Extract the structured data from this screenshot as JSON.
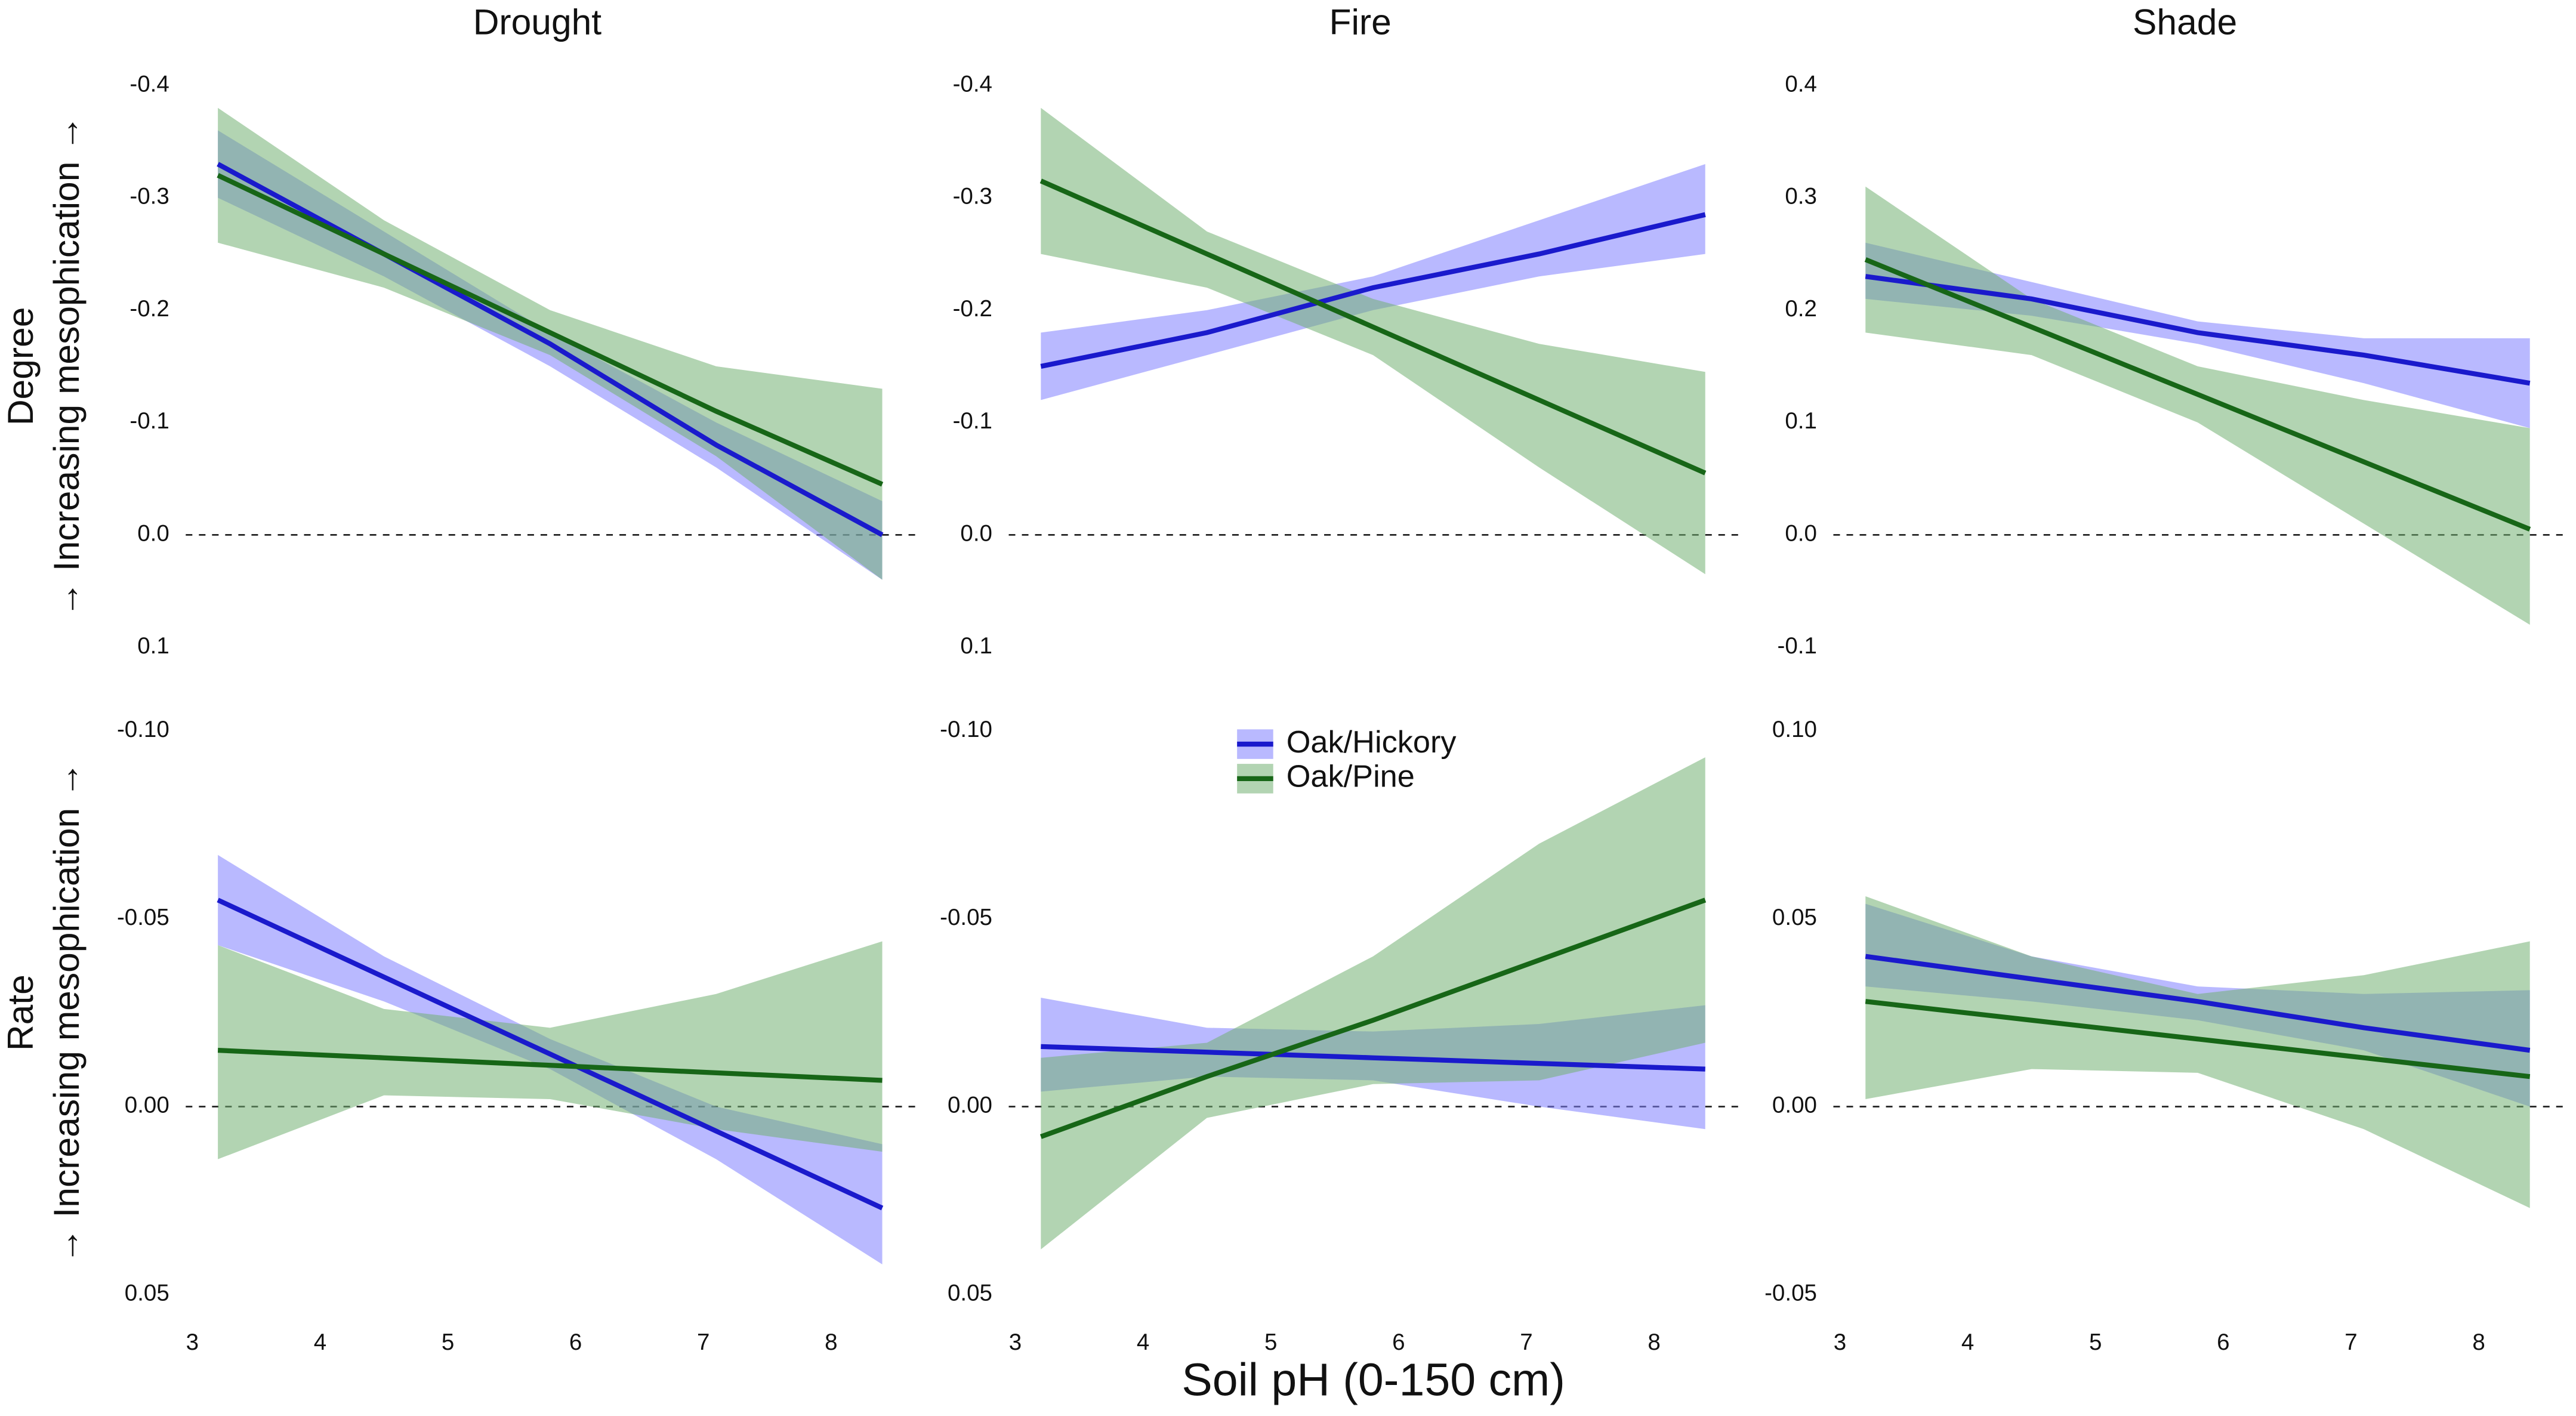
{
  "xlabel": "Soil pH (0-150 cm)",
  "chart_data": [
    {
      "type": "line",
      "title": "Drought",
      "ylabel": "Degree",
      "ylabel_sub": "→ Increasing mesophication →",
      "x": [
        3.2,
        4.5,
        5.8,
        7.1,
        8.4
      ],
      "xlim": [
        3,
        8.4
      ],
      "ylim": [
        0.1,
        -0.4
      ],
      "yticks": [
        -0.4,
        -0.3,
        -0.2,
        -0.1,
        {
          "value": 0,
          "label": "0.0"
        },
        0.1
      ],
      "hline": 0,
      "series": [
        {
          "name": "Oak/Hickory",
          "color": "#1a1acc",
          "fill": "#8080ff",
          "values": [
            -0.33,
            -0.25,
            -0.17,
            -0.08,
            0.0
          ],
          "lower": [
            -0.36,
            -0.27,
            -0.18,
            -0.1,
            -0.03
          ],
          "upper": [
            -0.3,
            -0.23,
            -0.15,
            -0.06,
            0.04
          ]
        },
        {
          "name": "Oak/Pine",
          "color": "#176617",
          "fill": "#72b072",
          "values": [
            -0.32,
            -0.25,
            -0.18,
            -0.11,
            -0.045
          ],
          "lower": [
            -0.38,
            -0.28,
            -0.2,
            -0.15,
            -0.13
          ],
          "upper": [
            -0.26,
            -0.22,
            -0.16,
            -0.07,
            0.04
          ]
        }
      ]
    },
    {
      "type": "line",
      "title": "Fire",
      "x": [
        3.2,
        4.5,
        5.8,
        7.1,
        8.4
      ],
      "xlim": [
        3,
        8.4
      ],
      "ylim": [
        0.1,
        -0.4
      ],
      "yticks": [
        -0.4,
        -0.3,
        -0.2,
        -0.1,
        {
          "value": 0,
          "label": "0.0"
        },
        0.1
      ],
      "hline": 0,
      "series": [
        {
          "name": "Oak/Hickory",
          "color": "#1a1acc",
          "fill": "#8080ff",
          "values": [
            -0.15,
            -0.18,
            -0.22,
            -0.25,
            -0.285
          ],
          "lower": [
            -0.18,
            -0.2,
            -0.23,
            -0.28,
            -0.33
          ],
          "upper": [
            -0.12,
            -0.16,
            -0.2,
            -0.23,
            -0.25
          ]
        },
        {
          "name": "Oak/Pine",
          "color": "#176617",
          "fill": "#72b072",
          "values": [
            -0.315,
            -0.25,
            -0.185,
            -0.12,
            -0.055
          ],
          "lower": [
            -0.38,
            -0.27,
            -0.21,
            -0.17,
            -0.145
          ],
          "upper": [
            -0.25,
            -0.22,
            -0.16,
            -0.06,
            0.035
          ]
        }
      ]
    },
    {
      "type": "line",
      "title": "Shade",
      "x": [
        3.2,
        4.5,
        5.8,
        7.1,
        8.4
      ],
      "xlim": [
        3,
        8.4
      ],
      "ylim": [
        -0.1,
        0.4
      ],
      "yticks": [
        0.4,
        0.3,
        0.2,
        0.1,
        {
          "value": 0,
          "label": "0.0"
        },
        -0.1
      ],
      "hline": 0,
      "series": [
        {
          "name": "Oak/Hickory",
          "color": "#1a1acc",
          "fill": "#8080ff",
          "values": [
            0.23,
            0.21,
            0.18,
            0.16,
            0.135
          ],
          "lower": [
            0.21,
            0.195,
            0.17,
            0.135,
            0.095
          ],
          "upper": [
            0.26,
            0.225,
            0.19,
            0.175,
            0.175
          ]
        },
        {
          "name": "Oak/Pine",
          "color": "#176617",
          "fill": "#72b072",
          "values": [
            0.245,
            0.185,
            0.125,
            0.065,
            0.005
          ],
          "lower": [
            0.18,
            0.16,
            0.1,
            0.01,
            -0.08
          ],
          "upper": [
            0.31,
            0.21,
            0.15,
            0.12,
            0.095
          ]
        }
      ]
    },
    {
      "type": "line",
      "ylabel": "Rate",
      "ylabel_sub": "→ Increasing mesophication →",
      "x": [
        3.2,
        4.5,
        5.8,
        7.1,
        8.4
      ],
      "xlim": [
        3,
        8.4
      ],
      "xticks": [
        3,
        4,
        5,
        6,
        7,
        8
      ],
      "ylim": [
        0.05,
        -0.1
      ],
      "yticks": [
        {
          "value": -0.1,
          "label": "-0.10"
        },
        -0.05,
        {
          "value": 0,
          "label": "0.00"
        },
        0.05
      ],
      "hline": 0,
      "series": [
        {
          "name": "Oak/Hickory",
          "color": "#1a1acc",
          "fill": "#8080ff",
          "values": [
            -0.055,
            -0.0345,
            -0.014,
            0.0065,
            0.027
          ],
          "lower": [
            -0.067,
            -0.04,
            -0.018,
            0.0,
            0.01
          ],
          "upper": [
            -0.043,
            -0.028,
            -0.01,
            0.014,
            0.042
          ]
        },
        {
          "name": "Oak/Pine",
          "color": "#176617",
          "fill": "#72b072",
          "values": [
            -0.015,
            -0.013,
            -0.011,
            -0.009,
            -0.007
          ],
          "lower": [
            -0.043,
            -0.026,
            -0.021,
            -0.03,
            -0.044
          ],
          "upper": [
            0.014,
            -0.003,
            -0.002,
            0.006,
            0.012
          ]
        }
      ]
    },
    {
      "type": "line",
      "legend": "upper center",
      "x": [
        3.2,
        4.5,
        5.8,
        7.1,
        8.4
      ],
      "xlim": [
        3,
        8.4
      ],
      "xticks": [
        3,
        4,
        5,
        6,
        7,
        8
      ],
      "ylim": [
        0.05,
        -0.1
      ],
      "yticks": [
        {
          "value": -0.1,
          "label": "-0.10"
        },
        -0.05,
        {
          "value": 0,
          "label": "0.00"
        },
        0.05
      ],
      "hline": 0,
      "series": [
        {
          "name": "Oak/Hickory",
          "color": "#1a1acc",
          "fill": "#8080ff",
          "values": [
            -0.016,
            -0.0145,
            -0.013,
            -0.0115,
            -0.01
          ],
          "lower": [
            -0.029,
            -0.021,
            -0.02,
            -0.022,
            -0.027
          ],
          "upper": [
            -0.004,
            -0.008,
            -0.007,
            0.0,
            0.006
          ]
        },
        {
          "name": "Oak/Pine",
          "color": "#176617",
          "fill": "#72b072",
          "values": [
            0.008,
            -0.008,
            -0.023,
            -0.039,
            -0.055
          ],
          "lower": [
            -0.013,
            -0.017,
            -0.04,
            -0.07,
            -0.093
          ],
          "upper": [
            0.038,
            0.003,
            -0.006,
            -0.007,
            -0.017
          ]
        }
      ]
    },
    {
      "type": "line",
      "x": [
        3.2,
        4.5,
        5.8,
        7.1,
        8.4
      ],
      "xlim": [
        3,
        8.4
      ],
      "xticks": [
        3,
        4,
        5,
        6,
        7,
        8
      ],
      "ylim": [
        -0.05,
        0.1
      ],
      "yticks": [
        {
          "value": 0.1,
          "label": "0.10"
        },
        0.05,
        {
          "value": 0,
          "label": "0.00"
        },
        -0.05
      ],
      "hline": 0,
      "series": [
        {
          "name": "Oak/Hickory",
          "color": "#1a1acc",
          "fill": "#8080ff",
          "values": [
            0.04,
            0.034,
            0.028,
            0.021,
            0.015
          ],
          "lower": [
            0.032,
            0.028,
            0.023,
            0.015,
            0.0
          ],
          "upper": [
            0.054,
            0.04,
            0.032,
            0.03,
            0.031
          ]
        },
        {
          "name": "Oak/Pine",
          "color": "#176617",
          "fill": "#72b072",
          "values": [
            0.028,
            0.023,
            0.018,
            0.013,
            0.008
          ],
          "lower": [
            0.002,
            0.01,
            0.009,
            -0.006,
            -0.027
          ],
          "upper": [
            0.056,
            0.04,
            0.03,
            0.035,
            0.044
          ]
        }
      ]
    }
  ]
}
